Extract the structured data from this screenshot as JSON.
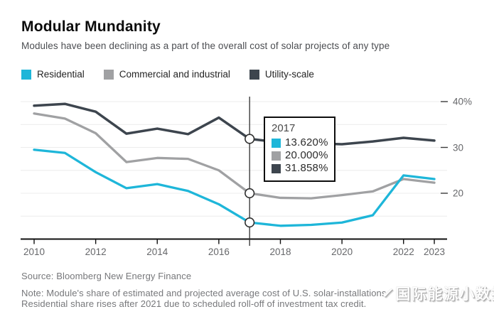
{
  "header": {
    "title": "Modular Mundanity",
    "subtitle": "Modules have been declining as a part of the overall cost of solar projects of any type"
  },
  "legend": [
    {
      "label": "Residential",
      "color": "#1eb6d9"
    },
    {
      "label": "Commercial and industrial",
      "color": "#a0a1a3"
    },
    {
      "label": "Utility-scale",
      "color": "#3d454e"
    }
  ],
  "tooltip": {
    "year": "2017",
    "rows": [
      {
        "series": "Residential",
        "value": "13.620%",
        "color": "#1eb6d9"
      },
      {
        "series": "Commercial and industrial",
        "value": "20.000%",
        "color": "#a0a1a3"
      },
      {
        "series": "Utility-scale",
        "value": "31.858%",
        "color": "#3d454e"
      }
    ]
  },
  "chart_data": {
    "type": "line",
    "title": "Modular Mundanity",
    "x": [
      2010,
      2011,
      2012,
      2013,
      2014,
      2015,
      2016,
      2017,
      2018,
      2019,
      2020,
      2021,
      2022,
      2023
    ],
    "series": [
      {
        "name": "Residential",
        "color": "#1eb6d9",
        "values": [
          29.5,
          28.8,
          24.6,
          21.1,
          22.0,
          20.5,
          17.6,
          13.62,
          12.9,
          13.1,
          13.6,
          15.2,
          23.9,
          23.1
        ]
      },
      {
        "name": "Commercial and industrial",
        "color": "#a0a1a3",
        "values": [
          37.4,
          36.3,
          33.1,
          26.8,
          27.7,
          27.5,
          25.0,
          20.0,
          19.0,
          18.9,
          19.6,
          20.4,
          23.1,
          22.3
        ]
      },
      {
        "name": "Utility-scale",
        "color": "#3d454e",
        "values": [
          39.1,
          39.5,
          37.8,
          33.0,
          34.1,
          32.9,
          36.5,
          31.858,
          31.1,
          30.9,
          30.7,
          31.3,
          32.1,
          31.5
        ]
      }
    ],
    "xticks": [
      2010,
      2012,
      2014,
      2016,
      2018,
      2020,
      2022,
      2023
    ],
    "yticks": [
      {
        "value": 40,
        "label": "40%"
      },
      {
        "value": 30,
        "label": "30"
      },
      {
        "value": 20,
        "label": "20"
      }
    ],
    "gridlines": [
      15,
      20,
      25,
      30,
      35,
      40
    ],
    "ylim": [
      10,
      41
    ],
    "unit": "%",
    "grid": "horizontal-faint",
    "legend_position": "top",
    "highlight_year": 2017
  },
  "footer": {
    "source": "Source: Bloomberg New Energy Finance",
    "note_line1": "Note: Module's share of estimated and projected average cost of U.S. solar-installations.",
    "note_line2": "Residential share rises after 2021 due to scheduled roll-off of investment tax credit."
  },
  "watermark": {
    "logo_icon": "✓",
    "text": "国际能源小数据"
  }
}
